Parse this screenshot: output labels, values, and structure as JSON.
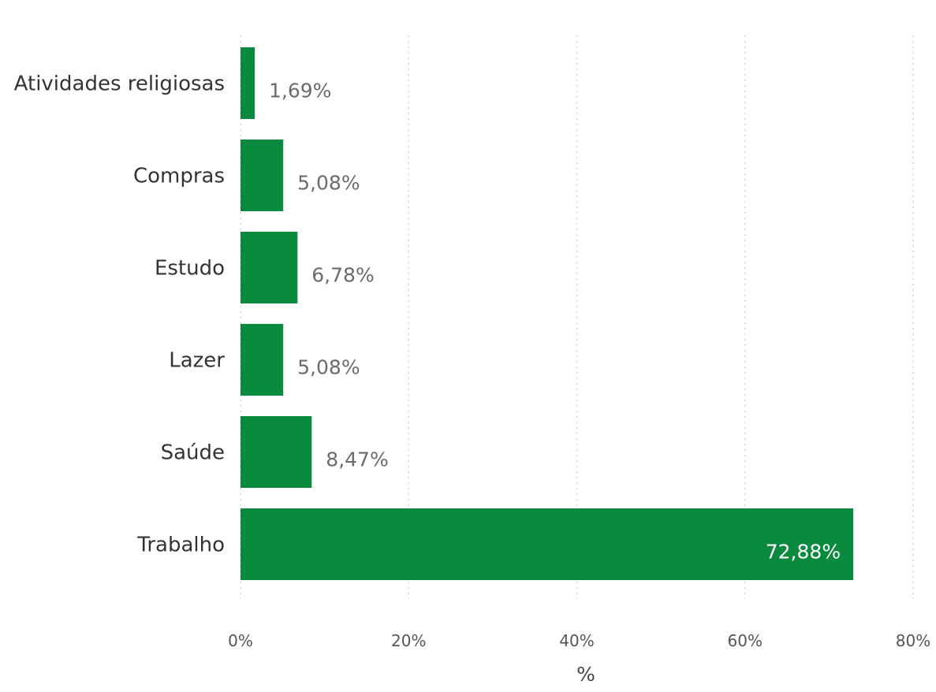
{
  "chart_data": {
    "type": "bar",
    "orientation": "horizontal",
    "categories": [
      "Atividades religiosas",
      "Compras",
      "Estudo",
      "Lazer",
      "Saúde",
      "Trabalho"
    ],
    "values": [
      1.69,
      5.08,
      6.78,
      5.08,
      8.47,
      72.88
    ],
    "data_labels": [
      "1,69%",
      "5,08%",
      "6,78%",
      "5,08%",
      "8,47%",
      "72,88%"
    ],
    "xlim": [
      0,
      80
    ],
    "x_ticks": [
      0,
      20,
      40,
      60,
      80
    ],
    "x_tick_labels": [
      "0%",
      "20%",
      "40%",
      "60%",
      "80%"
    ],
    "xlabel": "%",
    "ylabel": "",
    "title": "",
    "grid": "vertical dotted",
    "legend": "none",
    "bar_color": "#0a8a3f"
  }
}
